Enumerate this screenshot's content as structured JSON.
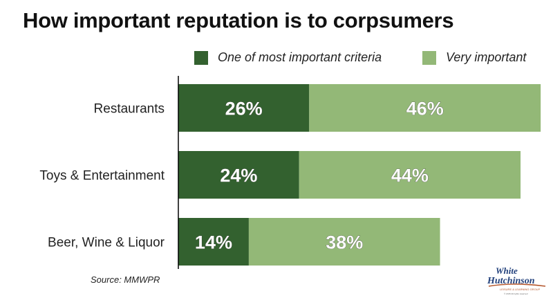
{
  "chart_data": {
    "type": "bar",
    "orientation": "horizontal",
    "stacked": true,
    "title": "How important reputation is to corpsumers",
    "categories": [
      "Restaurants",
      "Toys & Entertainment",
      "Beer, Wine & Liquor"
    ],
    "series": [
      {
        "name": "One of most important criteria",
        "values": [
          26,
          24,
          14
        ],
        "labels": [
          "26%",
          "24%",
          "14%"
        ],
        "color": "#33612f"
      },
      {
        "name": "Very important",
        "values": [
          46,
          44,
          38
        ],
        "labels": [
          "46%",
          "44%",
          "38%"
        ],
        "color": "#93b877"
      }
    ],
    "xlim": [
      0,
      73
    ],
    "grid": false,
    "legend_position": "top-right",
    "source": "Source: MMWPR"
  },
  "logo": {
    "text_line1": "White",
    "text_line2": "Hutchinson",
    "tagline": "LEISURE & LEARNING GROUP",
    "copyright": "© 2015 All rights reserved",
    "colors": {
      "text": "#1f3e7a",
      "accent": "#b3542a"
    }
  }
}
